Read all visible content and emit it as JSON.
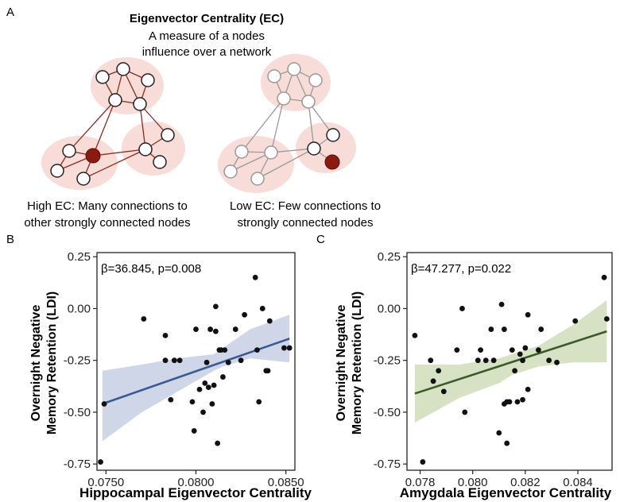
{
  "panel_a": {
    "letter": "A",
    "title": "Eigenvector Centrality (EC)",
    "subtitle_line1": "A measure of a nodes",
    "subtitle_line2": "influence over a network",
    "left_caption_line1": "High EC: Many connections to",
    "left_caption_line2": "other strongly connected nodes",
    "right_caption_line1": "Low EC: Few connections to",
    "right_caption_line2": "strongly connected nodes",
    "colors": {
      "highlight_node": "#8b1a10",
      "left_network_edges": "#8b2a1f",
      "right_network_edges": "#999999",
      "cluster_fill": "#f8dcd8"
    }
  },
  "chart_data": [
    {
      "type": "scatter",
      "panel_letter": "B",
      "annotation": "β=36.845, p=0.008",
      "xlabel": "Hippocampal Eigenvector Centrality",
      "ylabel_line1": "Overnight Negative",
      "ylabel_line2": "Memory Retention (LDI)",
      "xlim": [
        0.0745,
        0.0855
      ],
      "ylim": [
        -0.78,
        0.27
      ],
      "x_ticks": [
        0.075,
        0.08,
        0.085
      ],
      "x_tick_labels": [
        "0.0750",
        "0.0800",
        "0.0850"
      ],
      "y_ticks": [
        0.25,
        0.0,
        -0.25,
        -0.5,
        -0.75
      ],
      "y_tick_labels": [
        "0.25",
        "0.00",
        "-0.25",
        "-0.50",
        "-0.75"
      ],
      "line_color": "#3a5a93",
      "band_color": "#c7cfe4",
      "regression": {
        "x": [
          0.0748,
          0.0852
        ],
        "y": [
          -0.46,
          -0.145
        ]
      },
      "band": {
        "x": [
          0.0748,
          0.077,
          0.079,
          0.081,
          0.0815,
          0.083,
          0.0852
        ],
        "lower": [
          -0.64,
          -0.5,
          -0.4,
          -0.3,
          -0.28,
          -0.24,
          -0.26
        ],
        "upper": [
          -0.3,
          -0.27,
          -0.24,
          -0.22,
          -0.19,
          -0.1,
          -0.03
        ]
      },
      "points": [
        {
          "x": 0.0747,
          "y": -0.74
        },
        {
          "x": 0.0749,
          "y": -0.46
        },
        {
          "x": 0.0771,
          "y": -0.05
        },
        {
          "x": 0.0783,
          "y": -0.13
        },
        {
          "x": 0.0783,
          "y": -0.25
        },
        {
          "x": 0.0786,
          "y": -0.44
        },
        {
          "x": 0.0788,
          "y": -0.25
        },
        {
          "x": 0.0791,
          "y": -0.25
        },
        {
          "x": 0.0798,
          "y": -0.45
        },
        {
          "x": 0.0799,
          "y": -0.59
        },
        {
          "x": 0.08,
          "y": -0.1
        },
        {
          "x": 0.0802,
          "y": -0.39
        },
        {
          "x": 0.0804,
          "y": -0.5
        },
        {
          "x": 0.0805,
          "y": -0.36
        },
        {
          "x": 0.0806,
          "y": -0.26
        },
        {
          "x": 0.0807,
          "y": -0.38
        },
        {
          "x": 0.0808,
          "y": -0.1
        },
        {
          "x": 0.0809,
          "y": -0.46
        },
        {
          "x": 0.081,
          "y": -0.37
        },
        {
          "x": 0.0811,
          "y": 0.01
        },
        {
          "x": 0.0811,
          "y": -0.11
        },
        {
          "x": 0.0812,
          "y": -0.65
        },
        {
          "x": 0.0813,
          "y": -0.2
        },
        {
          "x": 0.0814,
          "y": -0.2
        },
        {
          "x": 0.0815,
          "y": -0.33
        },
        {
          "x": 0.0816,
          "y": -0.2
        },
        {
          "x": 0.0818,
          "y": -0.26
        },
        {
          "x": 0.0822,
          "y": -0.1
        },
        {
          "x": 0.0825,
          "y": -0.25
        },
        {
          "x": 0.0827,
          "y": -0.03
        },
        {
          "x": 0.0833,
          "y": 0.15
        },
        {
          "x": 0.0835,
          "y": -0.45
        },
        {
          "x": 0.0837,
          "y": 0.0
        },
        {
          "x": 0.0839,
          "y": -0.3
        },
        {
          "x": 0.084,
          "y": -0.3
        },
        {
          "x": 0.0841,
          "y": -0.06
        },
        {
          "x": 0.0834,
          "y": -0.2
        },
        {
          "x": 0.0849,
          "y": -0.19
        },
        {
          "x": 0.0852,
          "y": -0.19
        }
      ]
    },
    {
      "type": "scatter",
      "panel_letter": "C",
      "annotation": "β=47.277, p=0.022",
      "xlabel": "Amygdala Eigenvector Centrality",
      "ylabel_line1": "Overnight Negative",
      "ylabel_line2": "Memory Retention (LDI)",
      "xlim": [
        0.0775,
        0.0853
      ],
      "ylim": [
        -0.78,
        0.27
      ],
      "x_ticks": [
        0.078,
        0.08,
        0.082,
        0.084
      ],
      "x_tick_labels": [
        "0.078",
        "0.080",
        "0.082",
        "0.084"
      ],
      "y_ticks": [
        0.25,
        0.0,
        -0.25,
        -0.5,
        -0.75
      ],
      "y_tick_labels": [
        "0.25",
        "0.00",
        "-0.25",
        "-0.50",
        "-0.75"
      ],
      "line_color": "#3b5a2a",
      "band_color": "#cfddb8",
      "regression": {
        "x": [
          0.0778,
          0.0851
        ],
        "y": [
          -0.41,
          -0.11
        ]
      },
      "band": {
        "x": [
          0.0778,
          0.0795,
          0.081,
          0.0815,
          0.0825,
          0.0838,
          0.0851
        ],
        "lower": [
          -0.55,
          -0.43,
          -0.36,
          -0.32,
          -0.28,
          -0.26,
          -0.26
        ],
        "upper": [
          -0.27,
          -0.27,
          -0.24,
          -0.22,
          -0.18,
          -0.08,
          0.04
        ]
      },
      "points": [
        {
          "x": 0.0778,
          "y": -0.13
        },
        {
          "x": 0.0781,
          "y": -0.74
        },
        {
          "x": 0.0784,
          "y": -0.25
        },
        {
          "x": 0.0785,
          "y": -0.35
        },
        {
          "x": 0.0787,
          "y": -0.3
        },
        {
          "x": 0.0789,
          "y": -0.4
        },
        {
          "x": 0.0794,
          "y": -0.2
        },
        {
          "x": 0.0796,
          "y": 0.0
        },
        {
          "x": 0.0797,
          "y": -0.5
        },
        {
          "x": 0.0802,
          "y": -0.25
        },
        {
          "x": 0.0803,
          "y": -0.2
        },
        {
          "x": 0.0805,
          "y": -0.25
        },
        {
          "x": 0.0807,
          "y": -0.1
        },
        {
          "x": 0.0808,
          "y": -0.25
        },
        {
          "x": 0.081,
          "y": -0.6
        },
        {
          "x": 0.0811,
          "y": 0.02
        },
        {
          "x": 0.0812,
          "y": -0.46
        },
        {
          "x": 0.0812,
          "y": -0.1
        },
        {
          "x": 0.0813,
          "y": -0.45
        },
        {
          "x": 0.0813,
          "y": -0.65
        },
        {
          "x": 0.0814,
          "y": -0.45
        },
        {
          "x": 0.0815,
          "y": -0.2
        },
        {
          "x": 0.0816,
          "y": -0.3
        },
        {
          "x": 0.0817,
          "y": -0.45
        },
        {
          "x": 0.0818,
          "y": -0.22
        },
        {
          "x": 0.0819,
          "y": -0.25
        },
        {
          "x": 0.0819,
          "y": -0.44
        },
        {
          "x": 0.082,
          "y": -0.19
        },
        {
          "x": 0.0821,
          "y": -0.39
        },
        {
          "x": 0.0821,
          "y": -0.03
        },
        {
          "x": 0.0825,
          "y": -0.2
        },
        {
          "x": 0.0826,
          "y": -0.1
        },
        {
          "x": 0.0829,
          "y": -0.25
        },
        {
          "x": 0.0832,
          "y": -0.26
        },
        {
          "x": 0.0839,
          "y": -0.06
        },
        {
          "x": 0.085,
          "y": 0.15
        },
        {
          "x": 0.0851,
          "y": -0.05
        }
      ]
    }
  ]
}
